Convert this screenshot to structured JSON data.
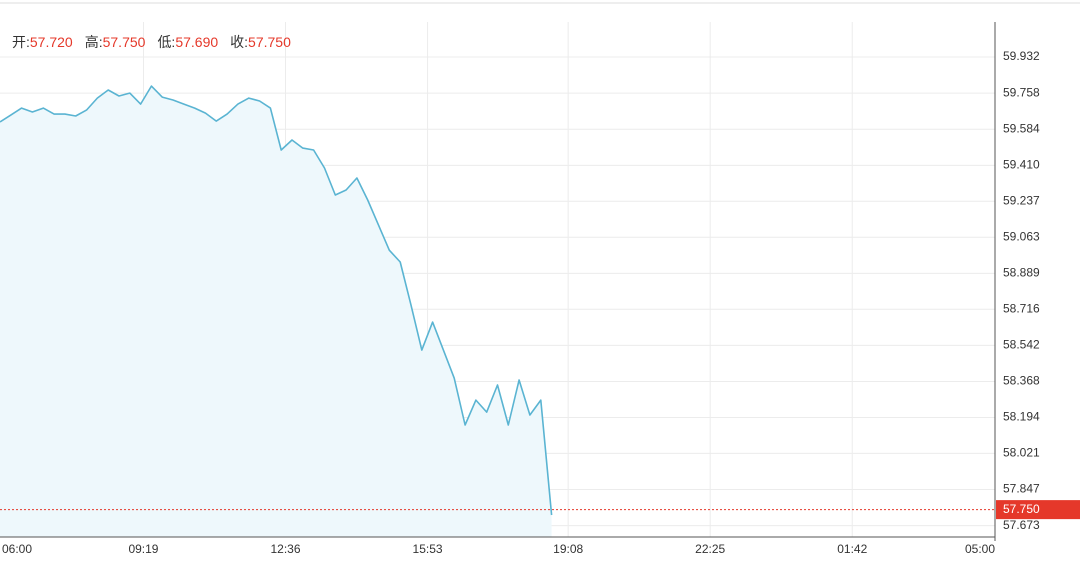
{
  "chart_data": {
    "type": "area-line",
    "header": [
      {
        "label": "开:",
        "value": {
          "value": 57.72,
          "label": "57.720"
        }
      },
      {
        "label": "高:",
        "value": {
          "value": 57.75,
          "label": "57.750"
        }
      },
      {
        "label": "低:",
        "value": {
          "value": 57.69,
          "label": "57.690"
        }
      },
      {
        "label": "收:",
        "value": {
          "value": 57.75,
          "label": "57.750"
        }
      }
    ],
    "x": [
      "06:00",
      "06:15",
      "06:30",
      "06:45",
      "07:00",
      "07:15",
      "07:30",
      "07:45",
      "08:00",
      "08:15",
      "08:30",
      "08:45",
      "09:00",
      "09:15",
      "09:30",
      "09:45",
      "10:00",
      "10:15",
      "10:30",
      "10:45",
      "11:00",
      "11:15",
      "11:30",
      "11:45",
      "12:00",
      "12:15",
      "12:30",
      "12:45",
      "13:00",
      "13:15",
      "13:30",
      "13:45",
      "14:00",
      "14:15",
      "14:30",
      "14:45",
      "15:00",
      "15:15",
      "15:30",
      "15:45",
      "16:00",
      "16:15",
      "16:30",
      "16:45",
      "17:00",
      "17:15",
      "17:30",
      "17:45",
      "18:00",
      "18:15",
      "18:30",
      "18:45"
    ],
    "series": [
      {
        "color": "#5ab4d2",
        "fill": "#eef8fc",
        "values": [
          59.619,
          59.652,
          59.686,
          59.667,
          59.686,
          59.657,
          59.657,
          59.648,
          59.676,
          59.734,
          59.773,
          59.744,
          59.758,
          59.705,
          59.792,
          59.739,
          59.725,
          59.705,
          59.686,
          59.662,
          59.623,
          59.657,
          59.705,
          59.734,
          59.72,
          59.686,
          59.484,
          59.532,
          59.493,
          59.484,
          59.397,
          59.267,
          59.291,
          59.349,
          59.243,
          59.122,
          59.001,
          58.944,
          58.736,
          58.519,
          58.654,
          58.519,
          58.384,
          58.158,
          58.278,
          58.22,
          58.351,
          58.158,
          58.375,
          58.206,
          58.278,
          57.724
        ]
      }
    ],
    "xlim": [
      "06:00",
      "05:00"
    ],
    "xticks": [
      "06:00",
      "09:19",
      "12:36",
      "15:53",
      "19:08",
      "22:25",
      "01:42",
      "05:00"
    ],
    "ylim": [
      57.618,
      60.101
    ],
    "yticks": [
      59.932,
      59.758,
      59.584,
      {
        "value": 59.41,
        "label": "59.410"
      },
      59.237,
      59.063,
      58.889,
      58.716,
      58.542,
      58.368,
      58.194,
      58.021,
      57.847,
      57.673
    ],
    "last_price": {
      "value": 57.75,
      "label": "57.750",
      "color": "#e5382a"
    },
    "grid": true
  }
}
